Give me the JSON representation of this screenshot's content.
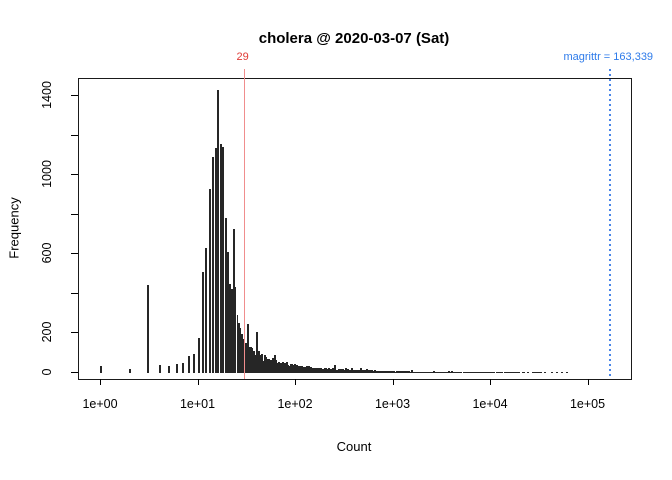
{
  "chart_data": {
    "type": "bar",
    "subtype": "histogram-log-x",
    "title": "cholera @ 2020-03-07 (Sat)",
    "xlabel": "Count",
    "ylabel": "Frequency",
    "x_scale": "log10",
    "grid": false,
    "x_ticks": [
      {
        "value": 1,
        "label": "1e+00"
      },
      {
        "value": 10,
        "label": "1e+01"
      },
      {
        "value": 100,
        "label": "1e+02"
      },
      {
        "value": 1000,
        "label": "1e+03"
      },
      {
        "value": 10000,
        "label": "1e+04"
      },
      {
        "value": 100000,
        "label": "1e+05"
      }
    ],
    "y_ticks": [
      {
        "value": 0,
        "label": "0"
      },
      {
        "value": 200,
        "label": "200"
      },
      {
        "value": 400,
        "label": ""
      },
      {
        "value": 600,
        "label": "600"
      },
      {
        "value": 800,
        "label": ""
      },
      {
        "value": 1000,
        "label": "1000"
      },
      {
        "value": 1200,
        "label": ""
      },
      {
        "value": 1400,
        "label": "1400"
      }
    ],
    "ylim": [
      0,
      1486
    ],
    "xlim": [
      0.6,
      270000
    ],
    "bars": [
      [
        1,
        35
      ],
      [
        2,
        20
      ],
      [
        3,
        445
      ],
      [
        4,
        40
      ],
      [
        5,
        35
      ],
      [
        6,
        45
      ],
      [
        7,
        52
      ],
      [
        8,
        85
      ],
      [
        9,
        96
      ],
      [
        10,
        175
      ],
      [
        11,
        510
      ],
      [
        12,
        630
      ],
      [
        13,
        930
      ],
      [
        14,
        1090
      ],
      [
        15,
        1135
      ],
      [
        16,
        1430
      ],
      [
        17,
        1155
      ],
      [
        18,
        1140
      ],
      [
        19,
        785
      ],
      [
        20,
        610
      ],
      [
        21,
        450
      ],
      [
        22,
        425
      ],
      [
        23,
        730
      ],
      [
        24,
        435
      ],
      [
        25,
        295
      ],
      [
        26,
        255
      ],
      [
        27,
        225
      ],
      [
        28,
        195
      ],
      [
        29,
        170
      ],
      [
        30,
        150
      ]
    ],
    "tail_points": [
      [
        31,
        130
      ],
      [
        35,
        105
      ],
      [
        40,
        90
      ],
      [
        45,
        78
      ],
      [
        50,
        68
      ],
      [
        60,
        55
      ],
      [
        70,
        47
      ],
      [
        85,
        40
      ],
      [
        100,
        34
      ],
      [
        130,
        28
      ],
      [
        160,
        24
      ],
      [
        200,
        21
      ],
      [
        260,
        18
      ],
      [
        340,
        16
      ],
      [
        450,
        14
      ],
      [
        600,
        11
      ],
      [
        800,
        9
      ],
      [
        1100,
        8
      ],
      [
        1500,
        6
      ],
      [
        2000,
        5
      ],
      [
        3000,
        5
      ],
      [
        4500,
        4
      ],
      [
        6500,
        4
      ],
      [
        9000,
        3
      ],
      [
        13000,
        3
      ],
      [
        20000,
        3
      ],
      [
        35000,
        2.5
      ]
    ],
    "sparse_marks": [
      [
        36000,
        4
      ],
      [
        42000,
        3
      ],
      [
        47000,
        4
      ],
      [
        53000,
        3
      ],
      [
        60000,
        3
      ]
    ],
    "annotations": {
      "red_line": {
        "value": 29,
        "label": "29",
        "line_color": "#f08d8d",
        "text_color": "#e03b36",
        "style": "solid"
      },
      "blue_line": {
        "value": 163339,
        "label": "magrittr = 163,339",
        "line_color": "#4a86e8",
        "text_color": "#2e7bea",
        "style": "dotted"
      }
    },
    "colors": {
      "bar": "#262626",
      "axis": "#000000",
      "title": "#000000",
      "background": "#ffffff"
    }
  }
}
